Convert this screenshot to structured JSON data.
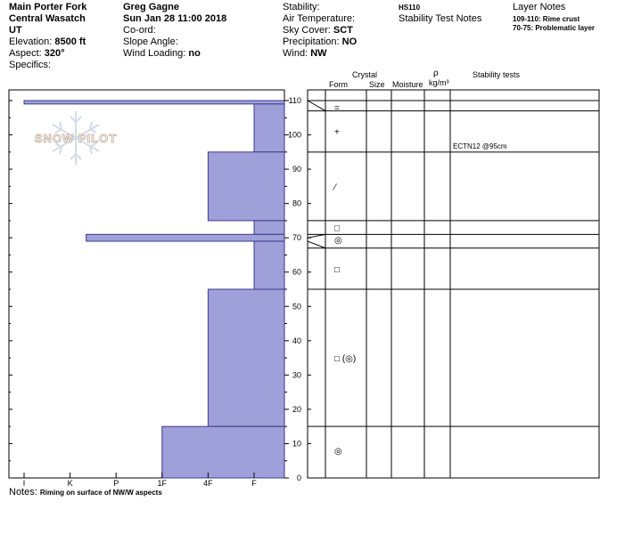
{
  "header": {
    "location": "Main Porter Fork",
    "range": "Central Wasatch",
    "state": "UT",
    "elevation_label": "Elevation:",
    "elevation_value": "8500 ft",
    "aspect_label": "Aspect:",
    "aspect_value": "320°",
    "specifics_label": "Specifics:",
    "observer": "Greg Gagne",
    "datetime": "Sun Jan 28 11:00 2018",
    "coord_label": "Co-ord:",
    "slope_label": "Slope Angle:",
    "wind_loading_label": "Wind Loading:",
    "wind_loading_value": "no",
    "stability_label": "Stability:",
    "air_temp_label": "Air Temperature:",
    "sky_cover_label": "Sky Cover:",
    "sky_cover_value": "SCT",
    "precip_label": "Precipitation:",
    "precip_value": "NO",
    "wind_label": "Wind:",
    "wind_value": "NW",
    "hs": "HS110",
    "stability_test_notes": "Stability Test Notes",
    "layer_notes_title": "Layer Notes",
    "layer_note_1": "109-110: Rime crust",
    "layer_note_2": "70-75: Problematic layer"
  },
  "logo_text": "SNOW PILOT",
  "columns": {
    "crystal": "Crystal",
    "form": "Form",
    "size": "Size",
    "moisture": "Moisture",
    "rho": "ρ",
    "density_unit": "kg/m³",
    "stability_tests": "Stability tests"
  },
  "notes_label": "Notes:",
  "notes_value": "Riming on surface of NW/W aspects",
  "colors": {
    "layer_fill": "#9f9fd9",
    "layer_stroke": "#3b3b8a",
    "grid": "#000000",
    "logo": "#c8b8a8"
  },
  "chart_data": {
    "type": "snow-profile",
    "depth_axis": {
      "min": 0,
      "max": 110,
      "ticks": [
        0,
        10,
        20,
        30,
        40,
        50,
        60,
        70,
        80,
        90,
        100,
        110
      ]
    },
    "hardness_ticks": [
      "I",
      "K",
      "P",
      "1F",
      "4F",
      "F"
    ],
    "layers": [
      {
        "bottom": 109,
        "top": 110,
        "hardness_index": 0.0
      },
      {
        "bottom": 95,
        "top": 109,
        "hardness_index": 5.0
      },
      {
        "bottom": 75,
        "top": 95,
        "hardness_index": 4.0
      },
      {
        "bottom": 71,
        "top": 75,
        "hardness_index": 5.0
      },
      {
        "bottom": 69,
        "top": 71,
        "hardness_index": 1.35
      },
      {
        "bottom": 55,
        "top": 69,
        "hardness_index": 5.0
      },
      {
        "bottom": 15,
        "top": 55,
        "hardness_index": 4.0
      },
      {
        "bottom": 0,
        "top": 15,
        "hardness_index": 3.0
      }
    ],
    "boundaries": [
      110,
      107,
      95,
      75,
      71,
      67,
      55,
      15
    ],
    "form_symbols": [
      {
        "depth": 108,
        "text": "="
      },
      {
        "depth": 101,
        "text": "+"
      },
      {
        "depth": 85,
        "text": "⁄"
      },
      {
        "depth": 73,
        "text": "□"
      },
      {
        "depth": 69.5,
        "text": "◎"
      },
      {
        "depth": 61,
        "text": "□"
      },
      {
        "depth": 35,
        "text": "□ (◎)"
      },
      {
        "depth": 8,
        "text": "◎"
      }
    ],
    "stability_results": [
      {
        "depth": 95,
        "text": "ECTN12 @95cm"
      }
    ]
  }
}
